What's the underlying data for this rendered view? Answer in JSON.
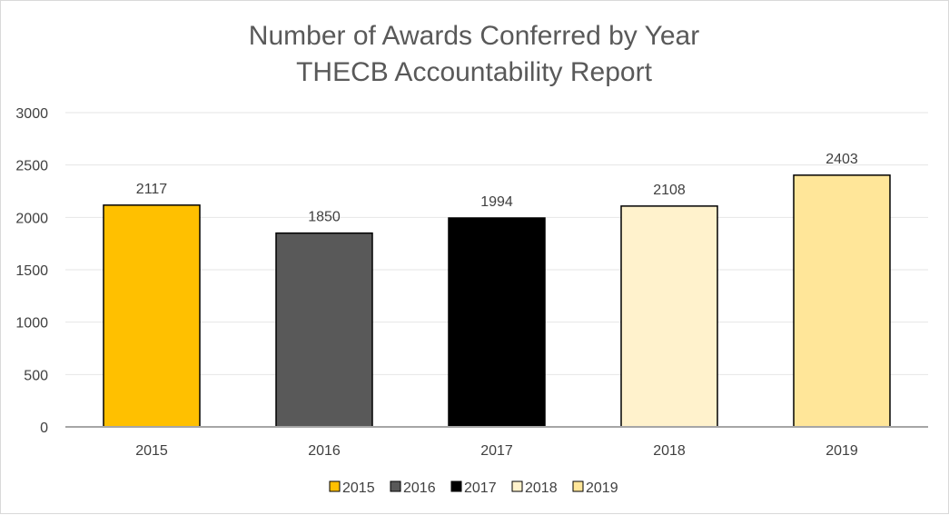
{
  "chart_data": {
    "type": "bar",
    "title": "Number of Awards Conferred by Year",
    "subtitle": "THECB Accountability Report",
    "categories": [
      "2015",
      "2016",
      "2017",
      "2018",
      "2019"
    ],
    "values": [
      2117,
      1850,
      1994,
      2108,
      2403
    ],
    "colors": [
      "#FFC000",
      "#595959",
      "#000000",
      "#FFF2CC",
      "#FFE699"
    ],
    "ylim": [
      0,
      3000
    ],
    "yticks": [
      "0",
      "500",
      "1000",
      "1500",
      "2000",
      "2500",
      "3000"
    ],
    "ytick_values": [
      0,
      500,
      1000,
      1500,
      2000,
      2500,
      3000
    ],
    "xlabel": "",
    "ylabel": "",
    "grid": true,
    "legend": {
      "placement": "bottom",
      "entries": [
        "2015",
        "2016",
        "2017",
        "2018",
        "2019"
      ]
    }
  }
}
